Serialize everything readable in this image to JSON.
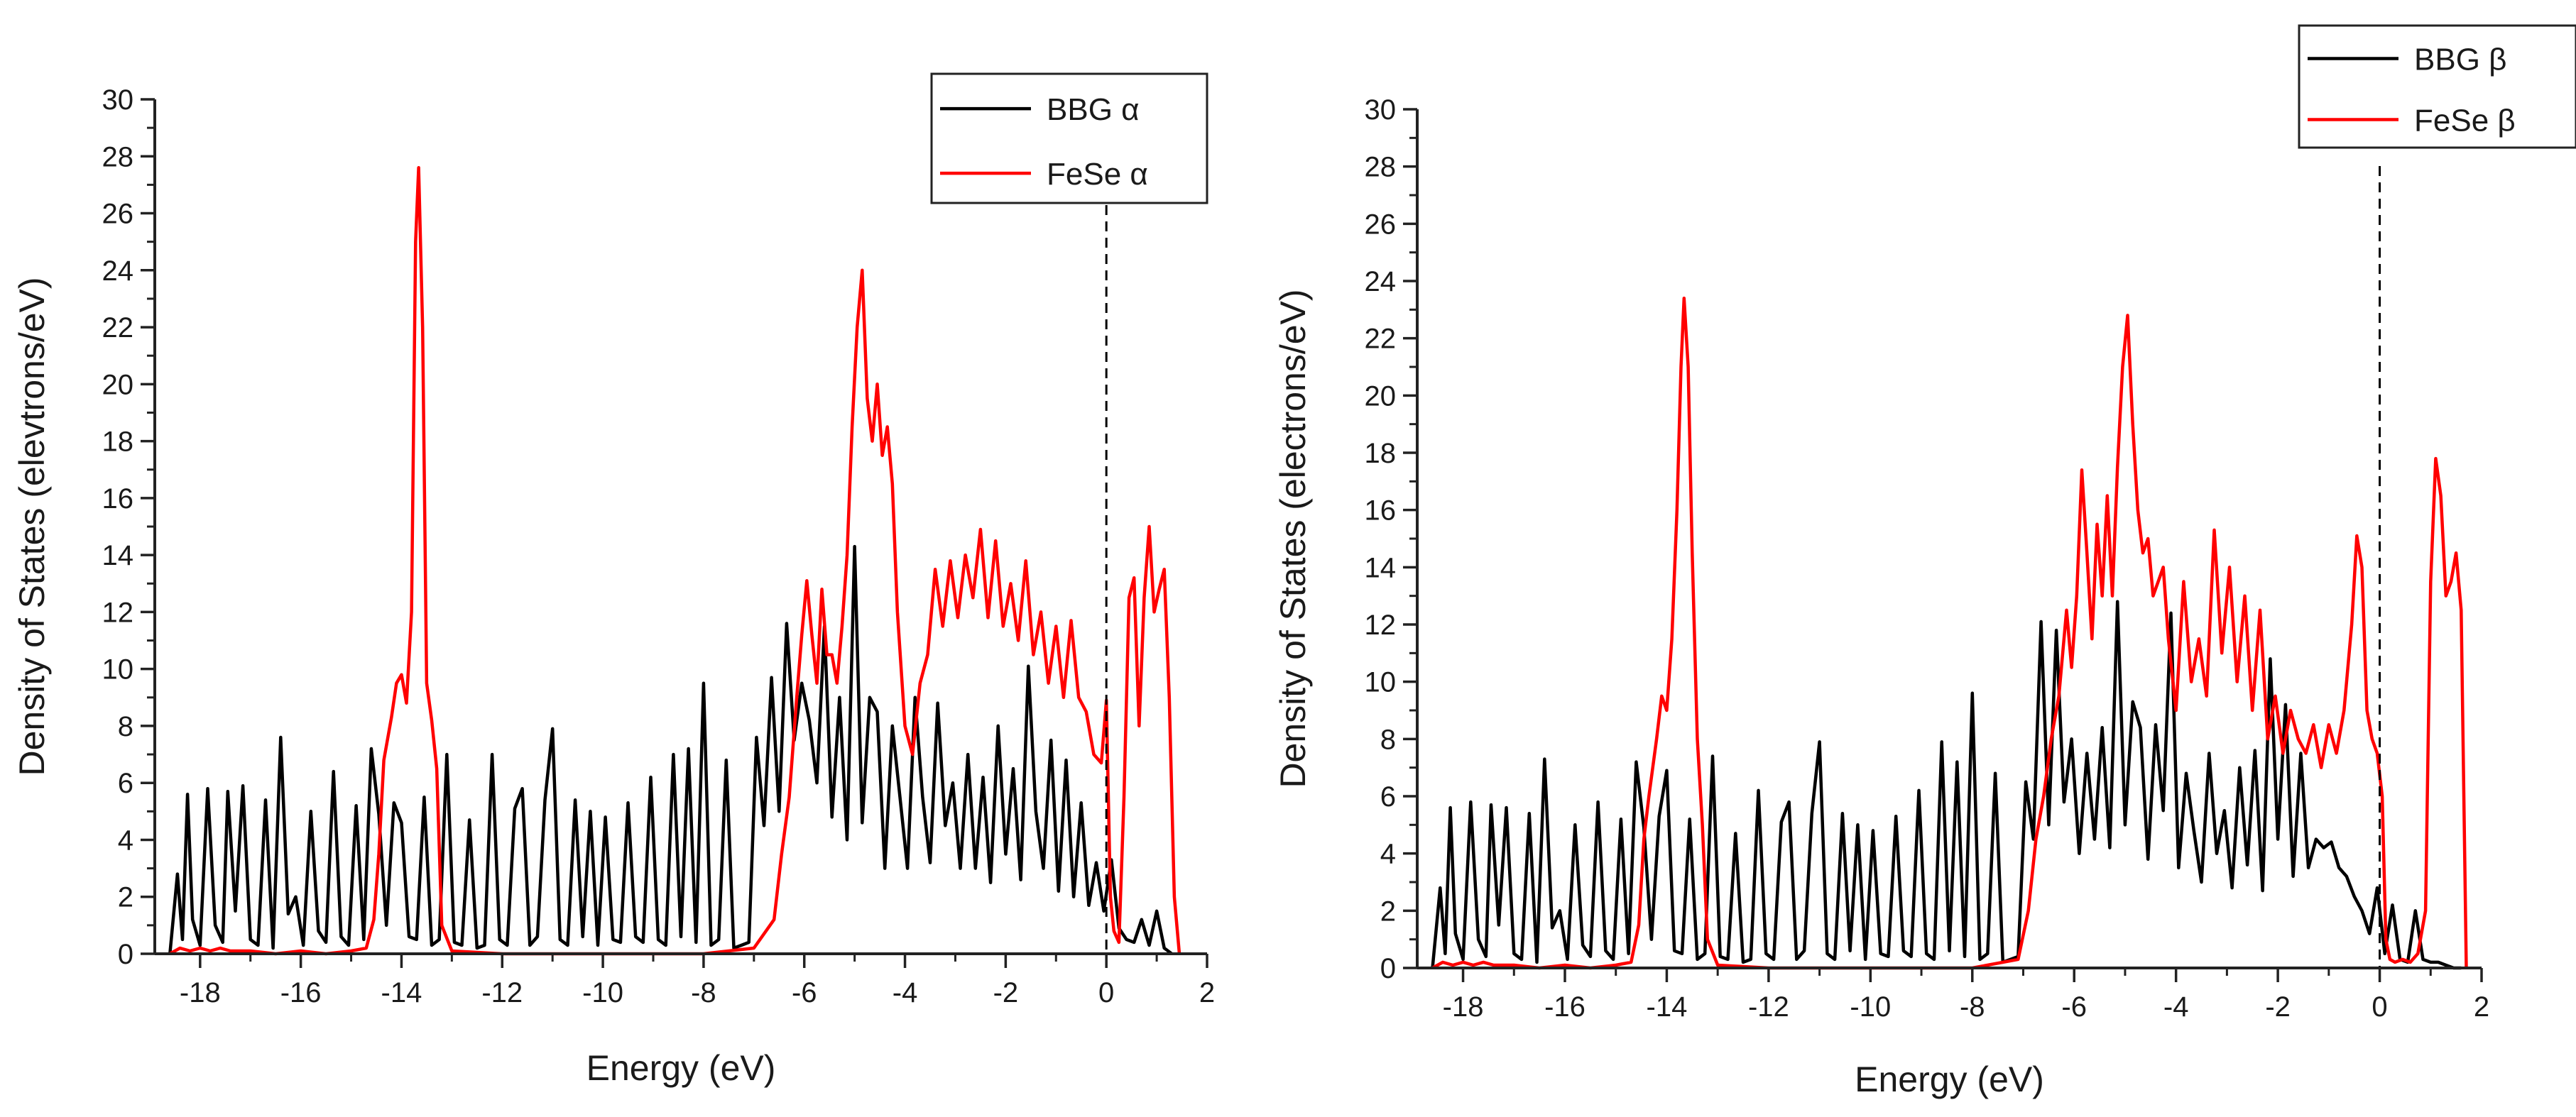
{
  "colors": {
    "bbg": "#000000",
    "fese": "#ff0000",
    "fermi": "#000000"
  },
  "chart_data": [
    {
      "type": "line",
      "panel": "alpha",
      "xlabel": "Energy (eV)",
      "ylabel": "Density of States (elevtrons/eV)",
      "xlim": [
        -18.9,
        2
      ],
      "ylim": [
        0,
        30
      ],
      "xticks": [
        -18,
        -16,
        -14,
        -12,
        -10,
        -8,
        -6,
        -4,
        -2,
        0,
        2
      ],
      "yticks": [
        0,
        2,
        4,
        6,
        8,
        10,
        12,
        14,
        16,
        18,
        20,
        22,
        24,
        26,
        28,
        30
      ],
      "fermi_level": 0,
      "legend": {
        "location": "top-right",
        "entries": [
          "BBG α",
          "FeSe α"
        ]
      },
      "series": [
        {
          "name": "BBG α",
          "color": "#000000",
          "x": [
            -18.6,
            -18.45,
            -18.35,
            -18.25,
            -18.15,
            -18.0,
            -17.85,
            -17.7,
            -17.55,
            -17.45,
            -17.3,
            -17.15,
            -17.0,
            -16.85,
            -16.7,
            -16.55,
            -16.4,
            -16.25,
            -16.1,
            -15.95,
            -15.8,
            -15.65,
            -15.5,
            -15.35,
            -15.2,
            -15.05,
            -14.9,
            -14.75,
            -14.6,
            -14.45,
            -14.3,
            -14.15,
            -14.0,
            -13.85,
            -13.7,
            -13.55,
            -13.4,
            -13.25,
            -13.1,
            -12.95,
            -12.8,
            -12.65,
            -12.5,
            -12.35,
            -12.2,
            -12.05,
            -11.9,
            -11.75,
            -11.6,
            -11.45,
            -11.3,
            -11.15,
            -11.0,
            -10.85,
            -10.7,
            -10.55,
            -10.4,
            -10.25,
            -10.1,
            -9.95,
            -9.8,
            -9.65,
            -9.5,
            -9.35,
            -9.2,
            -9.05,
            -8.9,
            -8.75,
            -8.6,
            -8.45,
            -8.3,
            -8.15,
            -8.0,
            -7.85,
            -7.7,
            -7.55,
            -7.4,
            -7.25,
            -7.1,
            -6.95,
            -6.8,
            -6.65,
            -6.5,
            -6.35,
            -6.2,
            -6.05,
            -5.9,
            -5.75,
            -5.6,
            -5.45,
            -5.3,
            -5.15,
            -5.0,
            -4.85,
            -4.7,
            -4.55,
            -4.4,
            -4.25,
            -4.1,
            -3.95,
            -3.8,
            -3.65,
            -3.5,
            -3.35,
            -3.2,
            -3.05,
            -2.9,
            -2.75,
            -2.6,
            -2.45,
            -2.3,
            -2.15,
            -2.0,
            -1.85,
            -1.7,
            -1.55,
            -1.4,
            -1.25,
            -1.1,
            -0.95,
            -0.8,
            -0.65,
            -0.5,
            -0.35,
            -0.2,
            -0.05,
            0.1,
            0.25,
            0.4,
            0.55,
            0.7,
            0.85,
            1.0,
            1.15,
            1.3
          ],
          "y": [
            0.0,
            2.8,
            0.5,
            5.6,
            1.2,
            0.3,
            5.8,
            1.0,
            0.4,
            5.7,
            1.5,
            5.9,
            0.5,
            0.3,
            5.4,
            0.2,
            7.6,
            1.4,
            2.0,
            0.3,
            5.0,
            0.8,
            0.4,
            6.4,
            0.6,
            0.3,
            5.2,
            0.5,
            7.2,
            4.9,
            1.0,
            5.3,
            4.6,
            0.6,
            0.5,
            5.5,
            0.3,
            0.5,
            7.0,
            0.4,
            0.3,
            4.7,
            0.2,
            0.3,
            7.0,
            0.5,
            0.3,
            5.1,
            5.8,
            0.3,
            0.6,
            5.4,
            7.9,
            0.5,
            0.3,
            5.4,
            0.6,
            5.0,
            0.3,
            4.8,
            0.5,
            0.4,
            5.3,
            0.6,
            0.4,
            6.2,
            0.5,
            0.3,
            7.0,
            0.6,
            7.2,
            0.4,
            9.5,
            0.3,
            0.5,
            6.8,
            0.2,
            0.3,
            0.4,
            7.6,
            4.5,
            9.7,
            5.0,
            11.6,
            7.5,
            9.5,
            8.2,
            6.0,
            11.5,
            4.8,
            9.0,
            4.0,
            14.3,
            4.6,
            9.0,
            8.5,
            3.0,
            8.0,
            5.5,
            3.0,
            9.0,
            5.5,
            3.2,
            8.8,
            4.5,
            6.0,
            3.0,
            7.0,
            3.0,
            6.2,
            2.5,
            8.0,
            3.5,
            6.5,
            2.6,
            10.1,
            5.0,
            3.0,
            7.5,
            2.2,
            6.8,
            2.0,
            5.3,
            1.7,
            3.2,
            1.5,
            3.3,
            0.9,
            0.5,
            0.4,
            1.2,
            0.3,
            1.5,
            0.2,
            0.0
          ]
        },
        {
          "name": "FeSe α",
          "color": "#ff0000",
          "x": [
            -18.6,
            -18.4,
            -18.2,
            -18.0,
            -17.8,
            -17.6,
            -17.4,
            -17.0,
            -16.5,
            -16.0,
            -15.5,
            -15.0,
            -14.7,
            -14.55,
            -14.45,
            -14.35,
            -14.2,
            -14.1,
            -14.0,
            -13.9,
            -13.8,
            -13.72,
            -13.66,
            -13.58,
            -13.5,
            -13.4,
            -13.3,
            -13.2,
            -13.0,
            -12.0,
            -10.0,
            -8.0,
            -7.0,
            -6.6,
            -6.45,
            -6.3,
            -6.15,
            -6.05,
            -5.95,
            -5.85,
            -5.75,
            -5.65,
            -5.55,
            -5.45,
            -5.35,
            -5.25,
            -5.15,
            -5.05,
            -4.95,
            -4.85,
            -4.75,
            -4.65,
            -4.55,
            -4.45,
            -4.35,
            -4.25,
            -4.15,
            -4.0,
            -3.85,
            -3.7,
            -3.55,
            -3.4,
            -3.25,
            -3.1,
            -2.95,
            -2.8,
            -2.65,
            -2.5,
            -2.35,
            -2.2,
            -2.05,
            -1.9,
            -1.75,
            -1.6,
            -1.45,
            -1.3,
            -1.15,
            -1.0,
            -0.85,
            -0.7,
            -0.55,
            -0.4,
            -0.25,
            -0.1,
            0.0,
            0.08,
            0.15,
            0.25,
            0.35,
            0.45,
            0.55,
            0.65,
            0.75,
            0.85,
            0.95,
            1.05,
            1.15,
            1.25,
            1.35,
            1.45
          ],
          "y": [
            0.0,
            0.2,
            0.1,
            0.2,
            0.1,
            0.2,
            0.1,
            0.1,
            0.0,
            0.1,
            0.0,
            0.1,
            0.2,
            1.2,
            3.5,
            6.8,
            8.3,
            9.5,
            9.8,
            8.8,
            12.0,
            25.0,
            27.6,
            22.0,
            9.5,
            8.2,
            6.5,
            1.0,
            0.1,
            0.0,
            0.0,
            0.0,
            0.2,
            1.2,
            3.5,
            5.5,
            9.0,
            11.2,
            13.1,
            11.2,
            9.5,
            12.8,
            10.5,
            10.5,
            9.5,
            11.5,
            14.0,
            18.5,
            22.0,
            24.0,
            19.5,
            18.0,
            20.0,
            17.5,
            18.5,
            16.5,
            12.0,
            8.0,
            7.0,
            9.5,
            10.5,
            13.5,
            11.5,
            13.8,
            11.8,
            14.0,
            12.5,
            14.9,
            11.8,
            14.5,
            11.5,
            13.0,
            11.0,
            13.8,
            10.5,
            12.0,
            9.5,
            11.5,
            9.0,
            11.7,
            9.0,
            8.5,
            7.0,
            6.7,
            8.9,
            2.0,
            0.8,
            0.4,
            5.5,
            12.5,
            13.2,
            8.0,
            12.5,
            15.0,
            12.0,
            12.8,
            13.5,
            9.0,
            2.0,
            0.0
          ]
        }
      ]
    },
    {
      "type": "line",
      "panel": "beta",
      "xlabel": "Energy (eV)",
      "ylabel": "Density of States (electrons/eV)",
      "xlim": [
        -18.9,
        2
      ],
      "ylim": [
        0,
        30
      ],
      "xticks": [
        -18,
        -16,
        -14,
        -12,
        -10,
        -8,
        -6,
        -4,
        -2,
        0,
        2
      ],
      "yticks": [
        0,
        2,
        4,
        6,
        8,
        10,
        12,
        14,
        16,
        18,
        20,
        22,
        24,
        26,
        28,
        30
      ],
      "fermi_level": 0,
      "legend": {
        "location": "top-right",
        "entries": [
          "BBG β",
          "FeSe β"
        ]
      },
      "series": [
        {
          "name": "BBG β",
          "color": "#000000",
          "x": [
            -18.6,
            -18.45,
            -18.35,
            -18.25,
            -18.15,
            -18.0,
            -17.85,
            -17.7,
            -17.55,
            -17.45,
            -17.3,
            -17.15,
            -17.0,
            -16.85,
            -16.7,
            -16.55,
            -16.4,
            -16.25,
            -16.1,
            -15.95,
            -15.8,
            -15.65,
            -15.5,
            -15.35,
            -15.2,
            -15.05,
            -14.9,
            -14.75,
            -14.6,
            -14.45,
            -14.3,
            -14.15,
            -14.0,
            -13.85,
            -13.7,
            -13.55,
            -13.4,
            -13.25,
            -13.1,
            -12.95,
            -12.8,
            -12.65,
            -12.5,
            -12.35,
            -12.2,
            -12.05,
            -11.9,
            -11.75,
            -11.6,
            -11.45,
            -11.3,
            -11.15,
            -11.0,
            -10.85,
            -10.7,
            -10.55,
            -10.4,
            -10.25,
            -10.1,
            -9.95,
            -9.8,
            -9.65,
            -9.5,
            -9.35,
            -9.2,
            -9.05,
            -8.9,
            -8.75,
            -8.6,
            -8.45,
            -8.3,
            -8.15,
            -8.0,
            -7.85,
            -7.7,
            -7.55,
            -7.4,
            -7.25,
            -7.1,
            -6.95,
            -6.8,
            -6.65,
            -6.5,
            -6.35,
            -6.2,
            -6.05,
            -5.9,
            -5.75,
            -5.6,
            -5.45,
            -5.3,
            -5.15,
            -5.0,
            -4.85,
            -4.7,
            -4.55,
            -4.4,
            -4.25,
            -4.1,
            -3.95,
            -3.8,
            -3.65,
            -3.5,
            -3.35,
            -3.2,
            -3.05,
            -2.9,
            -2.75,
            -2.6,
            -2.45,
            -2.3,
            -2.15,
            -2.0,
            -1.85,
            -1.7,
            -1.55,
            -1.4,
            -1.25,
            -1.1,
            -0.95,
            -0.8,
            -0.65,
            -0.5,
            -0.35,
            -0.2,
            -0.05,
            0.1,
            0.25,
            0.4,
            0.55,
            0.7,
            0.85,
            1.0,
            1.15,
            1.3,
            1.45,
            1.6
          ],
          "y": [
            0.0,
            2.8,
            0.5,
            5.6,
            1.2,
            0.3,
            5.8,
            1.0,
            0.4,
            5.7,
            1.5,
            5.6,
            0.5,
            0.3,
            5.4,
            0.2,
            7.3,
            1.4,
            2.0,
            0.3,
            5.0,
            0.8,
            0.4,
            5.8,
            0.6,
            0.3,
            5.2,
            0.5,
            7.2,
            4.9,
            1.0,
            5.3,
            6.9,
            0.6,
            0.5,
            5.2,
            0.3,
            0.5,
            7.4,
            0.4,
            0.3,
            4.7,
            0.2,
            0.3,
            6.2,
            0.5,
            0.3,
            5.1,
            5.8,
            0.3,
            0.6,
            5.4,
            7.9,
            0.5,
            0.3,
            5.4,
            0.6,
            5.0,
            0.3,
            4.8,
            0.5,
            0.4,
            5.3,
            0.6,
            0.4,
            6.2,
            0.5,
            0.3,
            7.9,
            0.6,
            7.2,
            0.4,
            9.6,
            0.3,
            0.5,
            6.8,
            0.2,
            0.3,
            0.4,
            6.5,
            4.5,
            12.1,
            5.0,
            11.8,
            5.8,
            8.0,
            4.0,
            7.5,
            4.5,
            8.4,
            4.2,
            12.8,
            5.0,
            9.3,
            8.4,
            3.8,
            8.5,
            5.5,
            12.4,
            3.5,
            6.8,
            4.8,
            3.0,
            7.5,
            4.0,
            5.5,
            2.8,
            7.0,
            3.6,
            7.6,
            2.7,
            10.8,
            4.5,
            9.2,
            3.2,
            7.5,
            3.5,
            4.5,
            4.2,
            4.4,
            3.5,
            3.2,
            2.5,
            2.0,
            1.2,
            2.8,
            0.5,
            2.2,
            0.3,
            0.2,
            2.0,
            0.3,
            0.2,
            0.2,
            0.1,
            0.0,
            0.0
          ]
        },
        {
          "name": "FeSe β",
          "color": "#ff0000",
          "x": [
            -18.6,
            -18.4,
            -18.2,
            -18.0,
            -17.8,
            -17.6,
            -17.4,
            -17.0,
            -16.5,
            -16.0,
            -15.5,
            -15.0,
            -14.7,
            -14.55,
            -14.45,
            -14.35,
            -14.2,
            -14.1,
            -14.0,
            -13.9,
            -13.8,
            -13.72,
            -13.66,
            -13.58,
            -13.5,
            -13.4,
            -13.3,
            -13.2,
            -13.0,
            -12.0,
            -10.0,
            -8.0,
            -7.1,
            -6.9,
            -6.75,
            -6.6,
            -6.45,
            -6.3,
            -6.15,
            -6.05,
            -5.95,
            -5.85,
            -5.75,
            -5.65,
            -5.55,
            -5.45,
            -5.35,
            -5.25,
            -5.15,
            -5.05,
            -4.95,
            -4.85,
            -4.75,
            -4.65,
            -4.55,
            -4.45,
            -4.35,
            -4.25,
            -4.15,
            -4.0,
            -3.85,
            -3.7,
            -3.55,
            -3.4,
            -3.25,
            -3.1,
            -2.95,
            -2.8,
            -2.65,
            -2.5,
            -2.35,
            -2.2,
            -2.05,
            -1.9,
            -1.75,
            -1.6,
            -1.45,
            -1.3,
            -1.15,
            -1.0,
            -0.85,
            -0.7,
            -0.55,
            -0.45,
            -0.35,
            -0.25,
            -0.15,
            -0.05,
            0.05,
            0.12,
            0.2,
            0.3,
            0.45,
            0.6,
            0.75,
            0.9,
            1.0,
            1.1,
            1.2,
            1.3,
            1.4,
            1.5,
            1.6,
            1.7
          ],
          "y": [
            0.0,
            0.2,
            0.1,
            0.2,
            0.1,
            0.2,
            0.1,
            0.1,
            0.0,
            0.1,
            0.0,
            0.1,
            0.2,
            1.5,
            4.5,
            6.0,
            8.0,
            9.5,
            9.0,
            11.5,
            16.0,
            21.0,
            23.4,
            21.0,
            14.5,
            8.0,
            5.0,
            1.0,
            0.1,
            0.0,
            0.0,
            0.0,
            0.3,
            2.0,
            4.5,
            6.0,
            8.0,
            9.5,
            12.5,
            10.5,
            13.0,
            17.4,
            14.5,
            11.5,
            15.5,
            13.0,
            16.5,
            13.0,
            17.5,
            21.0,
            22.8,
            19.0,
            16.0,
            14.5,
            15.0,
            13.0,
            13.5,
            14.0,
            11.5,
            9.0,
            13.5,
            10.0,
            11.5,
            9.5,
            15.3,
            11.0,
            14.0,
            10.0,
            13.0,
            9.0,
            12.5,
            8.0,
            9.5,
            7.5,
            9.0,
            8.0,
            7.5,
            8.5,
            7.0,
            8.5,
            7.5,
            9.0,
            12.0,
            15.1,
            14.0,
            9.0,
            8.0,
            7.5,
            6.0,
            1.0,
            0.3,
            0.2,
            0.3,
            0.2,
            0.5,
            2.0,
            13.5,
            17.8,
            16.5,
            13.0,
            13.5,
            14.5,
            12.5,
            0.0
          ]
        }
      ]
    }
  ]
}
